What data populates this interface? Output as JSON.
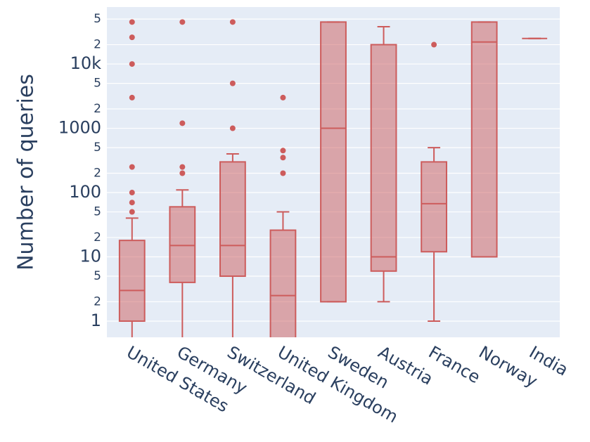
{
  "chart_data": {
    "type": "box",
    "y_label": "Number of queries",
    "categories": [
      "United States",
      "Germany",
      "Switzerland",
      "United Kingdom",
      "Sweden",
      "Austria",
      "France",
      "Norway",
      "India"
    ],
    "lower": [
      0.5,
      0.5,
      0.5,
      0.5,
      2,
      2,
      1,
      10,
      25000
    ],
    "q1": [
      1,
      4,
      5,
      0.5,
      2,
      6,
      12,
      10,
      25000
    ],
    "median": [
      3,
      15,
      15,
      2.5,
      1000,
      10,
      67,
      22000,
      25000
    ],
    "q3": [
      18,
      60,
      300,
      26,
      45000,
      20000,
      300,
      45000,
      25000
    ],
    "upper": [
      40,
      110,
      400,
      50,
      45000,
      38000,
      500,
      45000,
      25000
    ],
    "outliers": [
      [
        50,
        70,
        100,
        250,
        3000,
        10000,
        26000,
        45000
      ],
      [
        200,
        250,
        1200,
        45000
      ],
      [
        1000,
        5000,
        45000
      ],
      [
        200,
        350,
        450,
        3000
      ],
      [],
      [],
      [
        20000
      ],
      [],
      []
    ],
    "color": "#cd5c5c",
    "log_y": true,
    "grid": true,
    "ylim": [
      0.56,
      77000
    ],
    "yticks": [
      1,
      2,
      5,
      10,
      {
        "value": 20,
        "label": "2"
      },
      {
        "value": 50,
        "label": "5"
      },
      100,
      {
        "value": 200,
        "label": "2"
      },
      {
        "value": 500,
        "label": "5"
      },
      1000,
      {
        "value": 2000,
        "label": "2"
      },
      {
        "value": 5000,
        "label": "5"
      },
      {
        "value": 10000,
        "label": "10k"
      },
      {
        "value": 20000,
        "label": "2"
      },
      {
        "value": 50000,
        "label": "5"
      }
    ]
  }
}
